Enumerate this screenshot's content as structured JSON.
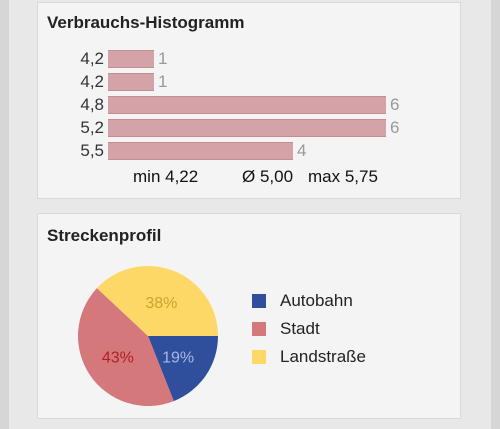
{
  "histogram_card": {
    "title": "Verbrauchs-Histogramm",
    "rows": [
      {
        "label": "4,2",
        "count": "1",
        "value": 1
      },
      {
        "label": "4,2",
        "count": "1",
        "value": 1
      },
      {
        "label": "4,8",
        "count": "6",
        "value": 6
      },
      {
        "label": "5,2",
        "count": "6",
        "value": 6
      },
      {
        "label": "5,5",
        "count": "4",
        "value": 4
      }
    ],
    "max_value": 6,
    "stats": {
      "min": "min 4,22",
      "avg": "Ø 5,00",
      "max": "max 5,75"
    }
  },
  "profile_card": {
    "title": "Streckenprofil",
    "slices": [
      {
        "name": "Autobahn",
        "label": "19%",
        "value": 19,
        "color": "#2f4e9c",
        "label_color": "#a9b8e0"
      },
      {
        "name": "Stadt",
        "label": "43%",
        "value": 43,
        "color": "#d4787c",
        "label_color": "#b22020"
      },
      {
        "name": "Landstraße",
        "label": "38%",
        "value": 38,
        "color": "#fdd866",
        "label_color": "#c8a52a"
      }
    ]
  },
  "chart_data": [
    {
      "type": "bar",
      "title": "Verbrauchs-Histogramm",
      "categories": [
        "4,2",
        "4,2",
        "4,8",
        "5,2",
        "5,5"
      ],
      "values": [
        1,
        1,
        6,
        6,
        4
      ],
      "orientation": "horizontal"
    },
    {
      "type": "pie",
      "title": "Streckenprofil",
      "categories": [
        "Autobahn",
        "Stadt",
        "Landstraße"
      ],
      "values": [
        19,
        43,
        38
      ],
      "legend": "right"
    }
  ]
}
